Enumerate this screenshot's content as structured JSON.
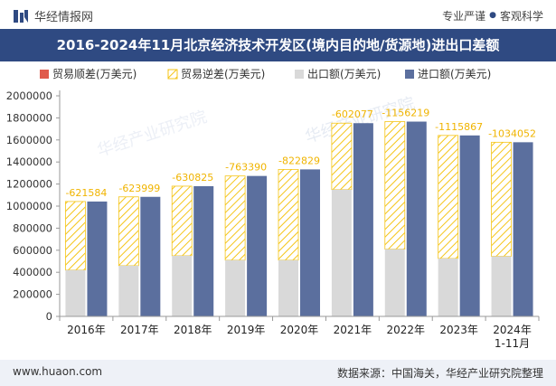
{
  "brand": {
    "logo_icon": "huajing-logo-icon",
    "name": "华经情报网"
  },
  "tagline": {
    "left": "专业严谨",
    "sep": "●",
    "right": "客观科学"
  },
  "title": "2016-2024年11月北京经济技术开发区(境内目的地/货源地)进出口差额",
  "footer": {
    "website": "www.huaon.com",
    "source": "数据来源：中国海关，华经产业研究院整理"
  },
  "watermark": "华经产业研究院",
  "colors": {
    "surplus": "#e05a4b",
    "deficit": "#f5c518",
    "export": "#d9d9d9",
    "import": "#5b6f9e",
    "label": "#f0b400",
    "title_bg": "#2f4a82"
  },
  "chart_data": {
    "type": "bar",
    "categories": [
      "2016年",
      "2017年",
      "2018年",
      "2019年",
      "2020年",
      "2021年",
      "2022年",
      "2023年",
      "2024年 1-11月"
    ],
    "category_lines": [
      [
        "2016年"
      ],
      [
        "2017年"
      ],
      [
        "2018年"
      ],
      [
        "2019年"
      ],
      [
        "2020年"
      ],
      [
        "2021年"
      ],
      [
        "2022年"
      ],
      [
        "2023年"
      ],
      [
        "2024年",
        "1-11月"
      ]
    ],
    "series": [
      {
        "name": "贸易顺差(万美元)",
        "values": [
          null,
          null,
          null,
          null,
          null,
          null,
          null,
          null,
          null
        ]
      },
      {
        "name": "贸易逆差(万美元)",
        "values": [
          -621584,
          -623999,
          -630825,
          -763390,
          -822829,
          -602077,
          -1156219,
          -1115867,
          -1034052
        ]
      },
      {
        "name": "出口额(万美元)",
        "values": [
          420000,
          460000,
          550000,
          510000,
          510000,
          1150000,
          610000,
          525000,
          545000
        ]
      },
      {
        "name": "进口额(万美元)",
        "values": [
          1041584,
          1083999,
          1180825,
          1273390,
          1332829,
          1752077,
          1766219,
          1640867,
          1579052
        ]
      }
    ],
    "data_labels": [
      "-621584",
      "-623999",
      "-630825",
      "-763390",
      "-822829",
      "-602077",
      "-1156219",
      "-1115867",
      "-1034052"
    ],
    "y_ticks": [
      "0",
      "200000",
      "400000",
      "600000",
      "800000",
      "1000000",
      "1200000",
      "1400000",
      "1600000",
      "1800000",
      "2000000"
    ],
    "ylim": [
      0,
      2000000
    ],
    "legend_position": "top-left"
  }
}
